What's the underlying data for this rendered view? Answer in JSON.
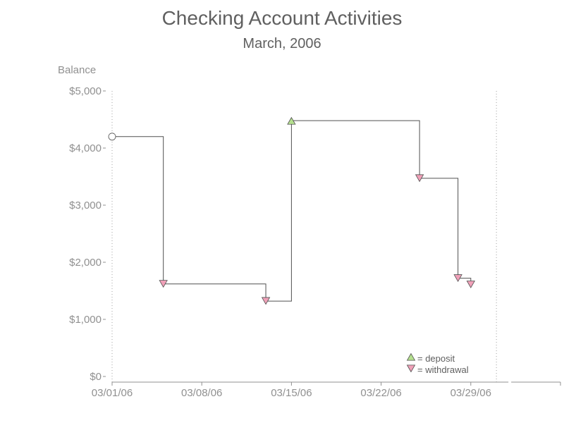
{
  "chart_data": {
    "type": "line",
    "title": "Checking Account Activities",
    "subtitle": "March, 2006",
    "ylabel": "Balance",
    "xlabel": "",
    "ylim": [
      0,
      5000
    ],
    "yticks": [
      0,
      1000,
      2000,
      3000,
      4000,
      5000
    ],
    "ytick_labels": [
      "$0",
      "$1,000",
      "$2,000",
      "$3,000",
      "$4,000",
      "$5,000"
    ],
    "xticks": [
      "2006-03-01",
      "2006-03-08",
      "2006-03-15",
      "2006-03-22",
      "2006-03-29"
    ],
    "xtick_labels": [
      "03/01/06",
      "03/08/06",
      "03/15/06",
      "03/22/06",
      "03/29/06"
    ],
    "xlim": [
      "2006-03-01",
      "2006-04-05"
    ],
    "reference_lines_x": [
      "2006-03-01",
      "2006-03-31"
    ],
    "step_style": "step-after",
    "points": [
      {
        "x": "2006-03-01",
        "y": 4200,
        "kind": "start"
      },
      {
        "x": "2006-03-05",
        "y": 1620,
        "kind": "withdrawal"
      },
      {
        "x": "2006-03-13",
        "y": 1320,
        "kind": "withdrawal"
      },
      {
        "x": "2006-03-15",
        "y": 4480,
        "kind": "deposit"
      },
      {
        "x": "2006-03-25",
        "y": 3470,
        "kind": "withdrawal"
      },
      {
        "x": "2006-03-28",
        "y": 1720,
        "kind": "withdrawal"
      },
      {
        "x": "2006-03-29",
        "y": 1610,
        "kind": "withdrawal"
      }
    ],
    "legend": {
      "placement": "bottom-right",
      "items": [
        {
          "kind": "deposit",
          "label": "= deposit"
        },
        {
          "kind": "withdrawal",
          "label": "= withdrawal"
        }
      ]
    },
    "colors": {
      "deposit": "#b5e08f",
      "withdrawal": "#f0a0b8",
      "marker_stroke": "#505050",
      "line": "#505050",
      "start_fill": "#ffffff"
    },
    "grid": false
  }
}
